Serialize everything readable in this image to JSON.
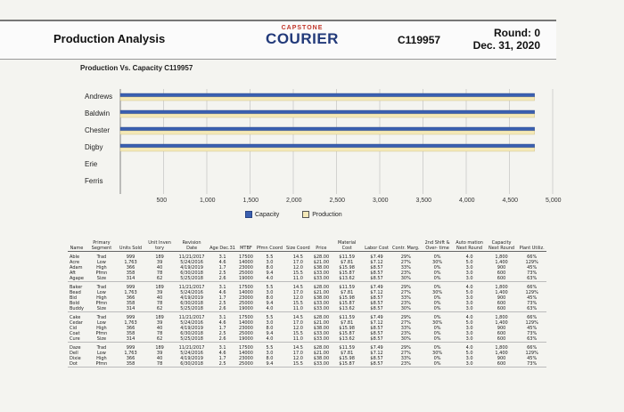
{
  "header": {
    "title": "Production Analysis",
    "logo_top": "CAPSTONE",
    "logo_main": "COURIER",
    "company_id": "C119957",
    "round": "Round: 0",
    "date": "Dec. 31, 2020"
  },
  "subtitle": "Production Vs. Capacity C119957",
  "colors": {
    "capacity": "#3a5fb0",
    "production": "#f5e9b8",
    "gridline": "#bbbbbb"
  },
  "chart_data": {
    "type": "bar",
    "orientation": "horizontal",
    "categories": [
      "Andrews",
      "Baldwin",
      "Chester",
      "Digby",
      "Erie",
      "Ferris"
    ],
    "series": [
      {
        "name": "Capacity",
        "values": [
          4790,
          4790,
          4790,
          4790,
          0,
          0
        ]
      },
      {
        "name": "Production",
        "values": [
          4790,
          4790,
          4790,
          4790,
          0,
          0
        ]
      }
    ],
    "xticks": [
      "500",
      "1,000",
      "1,500",
      "2,000",
      "2,500",
      "3,000",
      "3,500",
      "4,000",
      "4,500",
      "5,000"
    ],
    "xlim": [
      0,
      5000
    ],
    "legend": [
      "Capacity",
      "Production"
    ],
    "legend_position": "bottom"
  },
  "table": {
    "headers": [
      "Name",
      "Primary Segment",
      "Units Sold",
      "Unit Inven tory",
      "Revision Date",
      "Age Dec.31",
      "MTBF",
      "Pfmn Coord",
      "Size Coord",
      "Price",
      "Material Cost",
      "Labor Cost",
      "Contr. Marg.",
      "2nd Shift & Over- time",
      "Auto mation Next Round",
      "Capacity Next Round",
      "Plant Utiliz."
    ],
    "groups": [
      {
        "rows": [
          [
            "Able",
            "Trad",
            "999",
            "189",
            "11/21/2017",
            "3.1",
            "17500",
            "5.5",
            "14.5",
            "$28.00",
            "$11.59",
            "$7.49",
            "29%",
            "0%",
            "4.0",
            "1,800",
            "66%"
          ],
          [
            "Acre",
            "Low",
            "1,763",
            "39",
            "5/24/2016",
            "4.6",
            "14000",
            "3.0",
            "17.0",
            "$21.00",
            "$7.81",
            "$7.12",
            "27%",
            "30%",
            "5.0",
            "1,400",
            "129%"
          ],
          [
            "Adam",
            "High",
            "366",
            "40",
            "4/19/2019",
            "1.7",
            "23000",
            "8.0",
            "12.0",
            "$38.00",
            "$15.98",
            "$8.57",
            "33%",
            "0%",
            "3.0",
            "900",
            "45%"
          ],
          [
            "Aft",
            "Pfmn",
            "358",
            "78",
            "6/30/2018",
            "2.5",
            "25000",
            "9.4",
            "15.5",
            "$33.00",
            "$15.87",
            "$8.57",
            "23%",
            "0%",
            "3.0",
            "600",
            "73%"
          ],
          [
            "Agape",
            "Size",
            "314",
            "62",
            "5/25/2018",
            "2.6",
            "19000",
            "4.0",
            "11.0",
            "$33.00",
            "$13.62",
            "$8.57",
            "30%",
            "0%",
            "3.0",
            "600",
            "63%"
          ]
        ]
      },
      {
        "rows": [
          [
            "Baker",
            "Trad",
            "999",
            "189",
            "11/21/2017",
            "3.1",
            "17500",
            "5.5",
            "14.5",
            "$28.00",
            "$11.59",
            "$7.49",
            "29%",
            "0%",
            "4.0",
            "1,800",
            "66%"
          ],
          [
            "Bead",
            "Low",
            "1,763",
            "39",
            "5/24/2016",
            "4.6",
            "14000",
            "3.0",
            "17.0",
            "$21.00",
            "$7.81",
            "$7.12",
            "27%",
            "30%",
            "5.0",
            "1,400",
            "129%"
          ],
          [
            "Bid",
            "High",
            "366",
            "40",
            "4/19/2019",
            "1.7",
            "23000",
            "8.0",
            "12.0",
            "$38.00",
            "$15.98",
            "$8.57",
            "33%",
            "0%",
            "3.0",
            "900",
            "45%"
          ],
          [
            "Bold",
            "Pfmn",
            "358",
            "78",
            "6/30/2018",
            "2.5",
            "25000",
            "9.4",
            "15.5",
            "$33.00",
            "$15.87",
            "$8.57",
            "23%",
            "0%",
            "3.0",
            "600",
            "73%"
          ],
          [
            "Buddy",
            "Size",
            "314",
            "62",
            "5/25/2018",
            "2.6",
            "19000",
            "4.0",
            "11.0",
            "$33.00",
            "$13.62",
            "$8.57",
            "30%",
            "0%",
            "3.0",
            "600",
            "63%"
          ]
        ]
      },
      {
        "rows": [
          [
            "Cake",
            "Trad",
            "999",
            "189",
            "11/21/2017",
            "3.1",
            "17500",
            "5.5",
            "14.5",
            "$28.00",
            "$11.59",
            "$7.49",
            "29%",
            "0%",
            "4.0",
            "1,800",
            "66%"
          ],
          [
            "Cedar",
            "Low",
            "1,763",
            "39",
            "5/24/2016",
            "4.6",
            "14000",
            "3.0",
            "17.0",
            "$21.00",
            "$7.81",
            "$7.12",
            "27%",
            "30%",
            "5.0",
            "1,400",
            "129%"
          ],
          [
            "Cid",
            "High",
            "366",
            "40",
            "4/19/2019",
            "1.7",
            "23000",
            "8.0",
            "12.0",
            "$38.00",
            "$15.98",
            "$8.57",
            "33%",
            "0%",
            "3.0",
            "900",
            "45%"
          ],
          [
            "Coat",
            "Pfmn",
            "358",
            "78",
            "6/30/2018",
            "2.5",
            "25000",
            "9.4",
            "15.5",
            "$33.00",
            "$15.87",
            "$8.57",
            "23%",
            "0%",
            "3.0",
            "600",
            "73%"
          ],
          [
            "Cure",
            "Size",
            "314",
            "62",
            "5/25/2018",
            "2.6",
            "19000",
            "4.0",
            "11.0",
            "$33.00",
            "$13.62",
            "$8.57",
            "30%",
            "0%",
            "3.0",
            "600",
            "63%"
          ]
        ]
      },
      {
        "rows": [
          [
            "Daze",
            "Trad",
            "999",
            "189",
            "11/21/2017",
            "3.1",
            "17500",
            "5.5",
            "14.5",
            "$28.00",
            "$11.59",
            "$7.49",
            "29%",
            "0%",
            "4.0",
            "1,800",
            "66%"
          ],
          [
            "Dell",
            "Low",
            "1,763",
            "39",
            "5/24/2016",
            "4.6",
            "14000",
            "3.0",
            "17.0",
            "$21.00",
            "$7.81",
            "$7.12",
            "27%",
            "30%",
            "5.0",
            "1,400",
            "129%"
          ],
          [
            "Dixie",
            "High",
            "366",
            "40",
            "4/19/2019",
            "1.7",
            "23000",
            "8.0",
            "12.0",
            "$38.00",
            "$15.98",
            "$8.57",
            "33%",
            "0%",
            "3.0",
            "900",
            "45%"
          ],
          [
            "Dot",
            "Pfmn",
            "358",
            "78",
            "6/30/2018",
            "2.5",
            "25000",
            "9.4",
            "15.5",
            "$33.00",
            "$15.87",
            "$8.57",
            "23%",
            "0%",
            "3.0",
            "600",
            "73%"
          ]
        ]
      }
    ]
  }
}
